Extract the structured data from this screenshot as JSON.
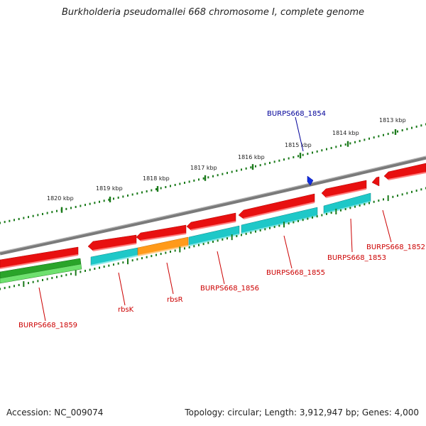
{
  "title": "Burkholderia pseudomallei 668 chromosome I, complete genome",
  "footer": {
    "accession": "Accession: NC_009074",
    "summary": "Topology: circular; Length: 3,912,947 bp; Genes: 4,000"
  },
  "scale": {
    "labels": [
      "1820 kbp",
      "1819 kbp",
      "1818 kbp",
      "1817 kbp",
      "1816 kbp",
      "1815 kbp",
      "1814 kbp",
      "1813 kbp"
    ]
  },
  "features": {
    "genes": [
      {
        "label": "BURPS668_1859",
        "color": "#cc0000"
      },
      {
        "label": "rbsK",
        "color": "#cc0000"
      },
      {
        "label": "rbsR",
        "color": "#cc0000"
      },
      {
        "label": "BURPS668_1856",
        "color": "#cc0000"
      },
      {
        "label": "BURPS668_1855",
        "color": "#cc0000"
      },
      {
        "label": "BURPS668_1854",
        "color": "#000099"
      },
      {
        "label": "BURPS668_1853",
        "color": "#cc0000"
      },
      {
        "label": "BURPS668_1852",
        "color": "#cc0000"
      }
    ]
  },
  "colors": {
    "backbone": "#808080",
    "cds_forward": "#e01010",
    "cds_reverse_cyan": "#1ec8c8",
    "cds_reverse_orange": "#ff9a1a",
    "rna_green": "#2aa82a",
    "ticks": "#1a7a1a",
    "label_red": "#cc0000",
    "label_blue": "#000099"
  }
}
